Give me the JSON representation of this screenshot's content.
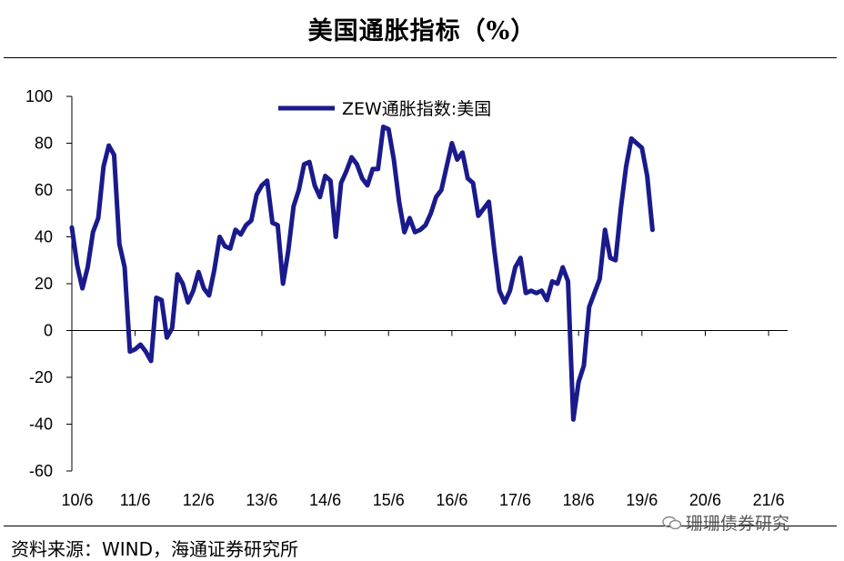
{
  "title": "美国通胀指标（%）",
  "source": "资料来源：WIND，海通证券研究所",
  "watermark": "珊珊债券研究",
  "colors": {
    "series": "#1a1a8c",
    "axis": "#000000"
  },
  "chart_data": {
    "type": "line",
    "title": "美国通胀指标（%）",
    "ylim": [
      -60,
      100
    ],
    "y_ticks": [
      100,
      80,
      60,
      40,
      20,
      0,
      -20,
      -40,
      -60
    ],
    "x_tick_labels": [
      "10/6",
      "11/6",
      "12/6",
      "13/6",
      "14/6",
      "15/6",
      "16/6",
      "17/6",
      "18/6",
      "19/6",
      "20/6",
      "21/6"
    ],
    "x_range_months": [
      "2010-06",
      "2021-06"
    ],
    "legend_position": "top-center",
    "grid": false,
    "series": [
      {
        "name": "ZEW通胀指数:美国",
        "values": [
          44,
          28,
          18,
          27,
          42,
          48,
          70,
          79,
          75,
          37,
          27,
          -9,
          -8,
          -6,
          -9,
          -13,
          14,
          13,
          -3,
          1,
          24,
          20,
          12,
          17,
          25,
          18,
          15,
          26,
          40,
          36,
          35,
          43,
          41,
          45,
          47,
          58,
          62,
          64,
          46,
          45,
          20,
          34,
          53,
          60,
          71,
          72,
          62,
          57,
          66,
          64,
          40,
          63,
          68,
          74,
          71,
          65,
          62,
          69,
          69,
          87,
          86,
          73,
          55,
          42,
          48,
          42,
          43,
          45,
          50,
          57,
          60,
          70,
          80,
          73,
          76,
          65,
          63,
          49,
          52,
          55,
          35,
          17,
          12,
          17,
          27,
          31,
          16,
          17,
          16,
          17,
          13,
          21,
          20,
          27,
          21,
          -38,
          -22,
          -15,
          10,
          16,
          22,
          43,
          31,
          30,
          52,
          70,
          82,
          80,
          78,
          66,
          43
        ]
      }
    ]
  }
}
